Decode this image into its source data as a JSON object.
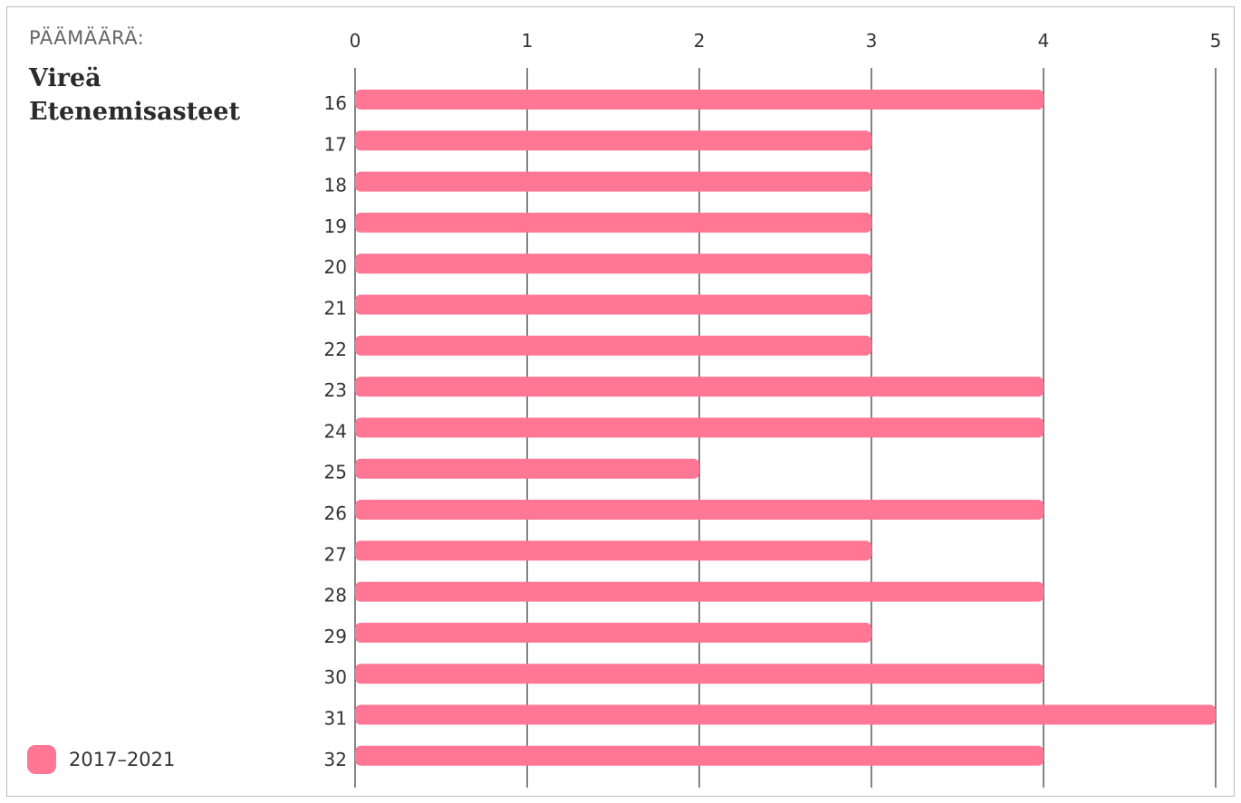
{
  "header": {
    "kicker": "PÄÄMÄÄRÄ:",
    "title_line1": "Vireä",
    "title_line2": "Etenemisasteet"
  },
  "legend": {
    "label": "2017–2021"
  },
  "colors": {
    "bar": "#ff7795",
    "grid": "#333333",
    "frame": "#bdbdbd"
  },
  "chart_data": {
    "type": "bar",
    "orientation": "horizontal",
    "categories": [
      "16",
      "17",
      "18",
      "19",
      "20",
      "21",
      "22",
      "23",
      "24",
      "25",
      "26",
      "27",
      "28",
      "29",
      "30",
      "31",
      "32"
    ],
    "series": [
      {
        "name": "2017–2021",
        "values": [
          4,
          3,
          3,
          3,
          3,
          3,
          3,
          4,
          4,
          2,
          4,
          3,
          4,
          3,
          4,
          5,
          4
        ]
      }
    ],
    "xlim": [
      0,
      5
    ],
    "xticks": [
      0,
      1,
      2,
      3,
      4,
      5
    ],
    "grid": true,
    "legend_position": "bottom-left"
  }
}
